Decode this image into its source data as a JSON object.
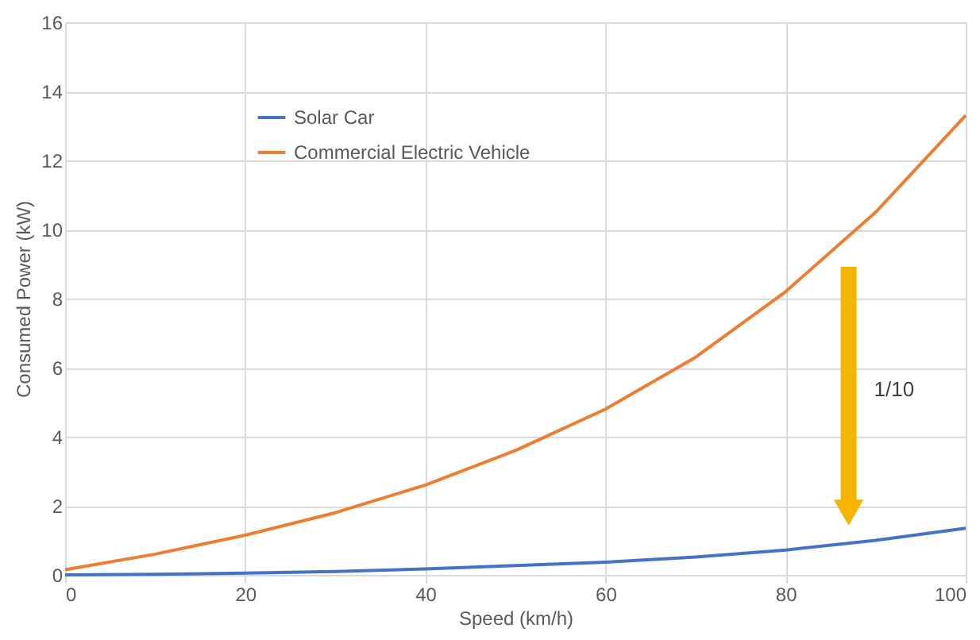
{
  "chart_data": {
    "type": "line",
    "xlabel": "Speed (km/h)",
    "ylabel": "Consumed Power (kW)",
    "x": [
      0,
      10,
      20,
      30,
      40,
      50,
      60,
      70,
      80,
      90,
      100
    ],
    "series": [
      {
        "name": "Solar Car",
        "color": "#4472c4",
        "values": [
          0,
          0.02,
          0.05,
          0.1,
          0.17,
          0.27,
          0.37,
          0.52,
          0.72,
          1.0,
          1.35
        ]
      },
      {
        "name": "Commercial Electric Vehicle",
        "color": "#ed7d31",
        "values": [
          0.15,
          0.6,
          1.15,
          1.8,
          2.6,
          3.6,
          4.8,
          6.3,
          8.2,
          10.5,
          13.3
        ]
      }
    ],
    "xlim": [
      0,
      100
    ],
    "xticks": [
      0,
      20,
      40,
      60,
      80,
      100
    ],
    "ylim": [
      0,
      16
    ],
    "yticks": [
      0,
      2,
      4,
      6,
      8,
      10,
      12,
      14,
      16
    ],
    "grid": true,
    "legend": "top left",
    "marker": "none",
    "line_style": "solid",
    "annotations": [
      "1/10"
    ]
  }
}
